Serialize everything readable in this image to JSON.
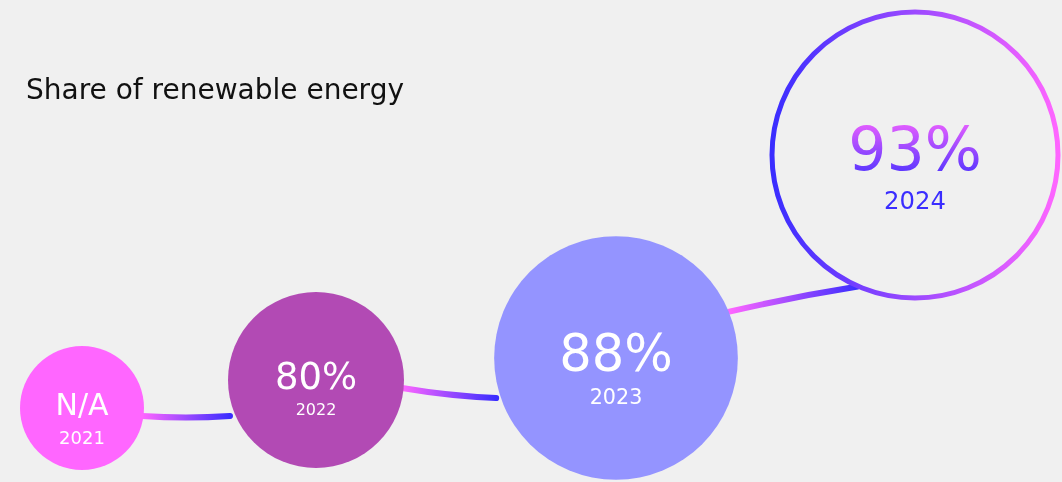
{
  "chart_data": {
    "type": "other",
    "title": "Share of renewable energy",
    "categories": [
      "2021",
      "2022",
      "2023",
      "2024"
    ],
    "values": [
      null,
      80,
      88,
      93
    ],
    "value_labels": [
      "N/A",
      "80%",
      "88%",
      "93%"
    ],
    "colors": [
      "#ff66ff",
      "#b24ab4",
      "#9494ff",
      "#3a2dff"
    ]
  }
}
